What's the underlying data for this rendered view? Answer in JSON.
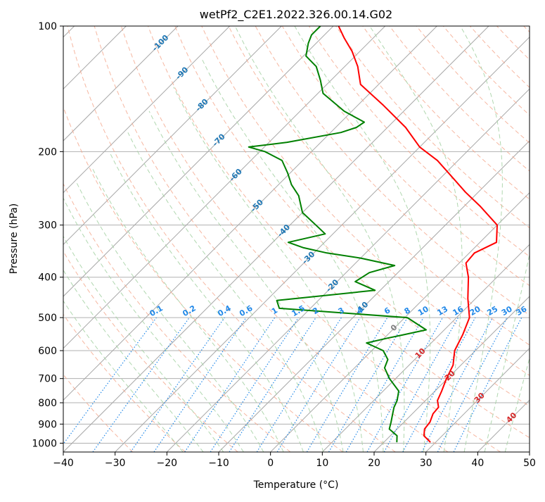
{
  "chart_data": {
    "type": "line",
    "subtype": "skew-t log-p diagram",
    "title": "wetPf2_C2E1.2022.326.00.14.G02",
    "xlabel": "Temperature (°C)",
    "ylabel": "Pressure (hPa)",
    "xlim": [
      -40,
      50
    ],
    "ylim": [
      1050,
      100
    ],
    "y_scale": "log",
    "grid": true,
    "x_ticks": [
      -40,
      -30,
      -20,
      -10,
      0,
      10,
      20,
      30,
      40,
      50
    ],
    "x_tick_labels": [
      "−40",
      "−30",
      "−20",
      "−10",
      "0",
      "10",
      "20",
      "30",
      "40",
      "50"
    ],
    "y_ticks": [
      100,
      200,
      300,
      400,
      500,
      600,
      700,
      800,
      900,
      1000
    ],
    "y_tick_labels": [
      "100",
      "200",
      "300",
      "400",
      "500",
      "600",
      "700",
      "800",
      "900",
      "1000"
    ],
    "colors": {
      "temperature": "#ff0000",
      "dewpoint": "#008000",
      "isotherm": "#a8a8a8",
      "dry_adiabat": "#f4a58a",
      "moist_adiabat": "#a7d3a6",
      "mixing_ratio": "#2188e8",
      "isotherm_label": "#1f77b4",
      "dry_adiabat_label": "#d62728",
      "freezing": "#808080"
    },
    "series": [
      {
        "kind": "temperature",
        "points": [
          {
            "t": 29.0,
            "p": 995
          },
          {
            "t": 26.5,
            "p": 960
          },
          {
            "t": 25.3,
            "p": 925
          },
          {
            "t": 25.0,
            "p": 890
          },
          {
            "t": 24.0,
            "p": 850
          },
          {
            "t": 23.8,
            "p": 820
          },
          {
            "t": 22.3,
            "p": 790
          },
          {
            "t": 21.3,
            "p": 750
          },
          {
            "t": 19.8,
            "p": 700
          },
          {
            "t": 18.5,
            "p": 650
          },
          {
            "t": 16.0,
            "p": 600
          },
          {
            "t": 14.5,
            "p": 550
          },
          {
            "t": 12.5,
            "p": 500
          },
          {
            "t": 8.5,
            "p": 450
          },
          {
            "t": 4.5,
            "p": 400
          },
          {
            "t": 1.3,
            "p": 370
          },
          {
            "t": 1.0,
            "p": 350
          },
          {
            "t": 3.2,
            "p": 330
          },
          {
            "t": 0.0,
            "p": 300
          },
          {
            "t": -7.0,
            "p": 270
          },
          {
            "t": -12.5,
            "p": 250
          },
          {
            "t": -18.0,
            "p": 230
          },
          {
            "t": -24.0,
            "p": 210
          },
          {
            "t": -30.0,
            "p": 195
          },
          {
            "t": -36.5,
            "p": 175
          },
          {
            "t": -45.0,
            "p": 155
          },
          {
            "t": -53.5,
            "p": 138
          },
          {
            "t": -57.5,
            "p": 125
          },
          {
            "t": -61.5,
            "p": 115
          },
          {
            "t": -65.5,
            "p": 107
          },
          {
            "t": -69.0,
            "p": 100
          }
        ]
      },
      {
        "kind": "dewpoint",
        "points": [
          {
            "t": 22.5,
            "p": 995
          },
          {
            "t": 21.3,
            "p": 960
          },
          {
            "t": 18.5,
            "p": 925
          },
          {
            "t": 17.5,
            "p": 890
          },
          {
            "t": 16.2,
            "p": 850
          },
          {
            "t": 15.2,
            "p": 820
          },
          {
            "t": 14.5,
            "p": 790
          },
          {
            "t": 13.0,
            "p": 750
          },
          {
            "t": 8.8,
            "p": 700
          },
          {
            "t": 5.8,
            "p": 660
          },
          {
            "t": 4.8,
            "p": 630
          },
          {
            "t": 2.2,
            "p": 600
          },
          {
            "t": -2.5,
            "p": 575
          },
          {
            "t": 0.6,
            "p": 560
          },
          {
            "t": 3.0,
            "p": 550
          },
          {
            "t": 6.5,
            "p": 535
          },
          {
            "t": 0.5,
            "p": 500
          },
          {
            "t": -26.0,
            "p": 475
          },
          {
            "t": -28.0,
            "p": 455
          },
          {
            "t": -11.0,
            "p": 430
          },
          {
            "t": -16.5,
            "p": 410
          },
          {
            "t": -15.5,
            "p": 390
          },
          {
            "t": -12.0,
            "p": 375
          },
          {
            "t": -20.0,
            "p": 360
          },
          {
            "t": -27.5,
            "p": 350
          },
          {
            "t": -33.0,
            "p": 340
          },
          {
            "t": -37.0,
            "p": 330
          },
          {
            "t": -31.5,
            "p": 315
          },
          {
            "t": -35.0,
            "p": 300
          },
          {
            "t": -40.0,
            "p": 280
          },
          {
            "t": -44.0,
            "p": 255
          },
          {
            "t": -47.5,
            "p": 240
          },
          {
            "t": -50.5,
            "p": 225
          },
          {
            "t": -54.0,
            "p": 210
          },
          {
            "t": -59.0,
            "p": 200
          },
          {
            "t": -63.0,
            "p": 195
          },
          {
            "t": -56.5,
            "p": 190
          },
          {
            "t": -48.0,
            "p": 180
          },
          {
            "t": -46.0,
            "p": 175
          },
          {
            "t": -45.5,
            "p": 170
          },
          {
            "t": -51.5,
            "p": 160
          },
          {
            "t": -59.0,
            "p": 145
          },
          {
            "t": -62.0,
            "p": 135
          },
          {
            "t": -65.5,
            "p": 125
          },
          {
            "t": -69.5,
            "p": 118
          },
          {
            "t": -71.5,
            "p": 110
          },
          {
            "t": -72.5,
            "p": 105
          },
          {
            "t": -72.5,
            "p": 100
          }
        ]
      }
    ],
    "isotherm_labels": [
      {
        "text": "-100",
        "t": -100,
        "p": 110
      },
      {
        "text": "-90",
        "t": -90,
        "p": 130
      },
      {
        "text": "-80",
        "t": -80,
        "p": 155
      },
      {
        "text": "-70",
        "t": -70,
        "p": 188
      },
      {
        "text": "-60",
        "t": -60,
        "p": 228
      },
      {
        "text": "-50",
        "t": -50,
        "p": 270
      },
      {
        "text": "-40",
        "t": -40,
        "p": 310
      },
      {
        "text": "-30",
        "t": -30,
        "p": 360
      },
      {
        "text": "-20",
        "t": -20,
        "p": 420
      },
      {
        "text": "-10",
        "t": -10,
        "p": 475
      }
    ],
    "freezing_label": {
      "text": "0",
      "t": 0,
      "p": 530
    },
    "dry_adiabat_labels": [
      {
        "text": "10",
        "t": 10,
        "p": 610
      },
      {
        "text": "20",
        "t": 20,
        "p": 690
      },
      {
        "text": "30",
        "t": 30,
        "p": 780
      },
      {
        "text": "40",
        "t": 40,
        "p": 870
      }
    ],
    "mixing_ratio_labels": [
      "0.1",
      "0.2",
      "0.4",
      "0.6",
      "1",
      "1.5",
      "2",
      "3",
      "4",
      "6",
      "8",
      "10",
      "13",
      "16",
      "20",
      "25",
      "30",
      "36"
    ]
  }
}
